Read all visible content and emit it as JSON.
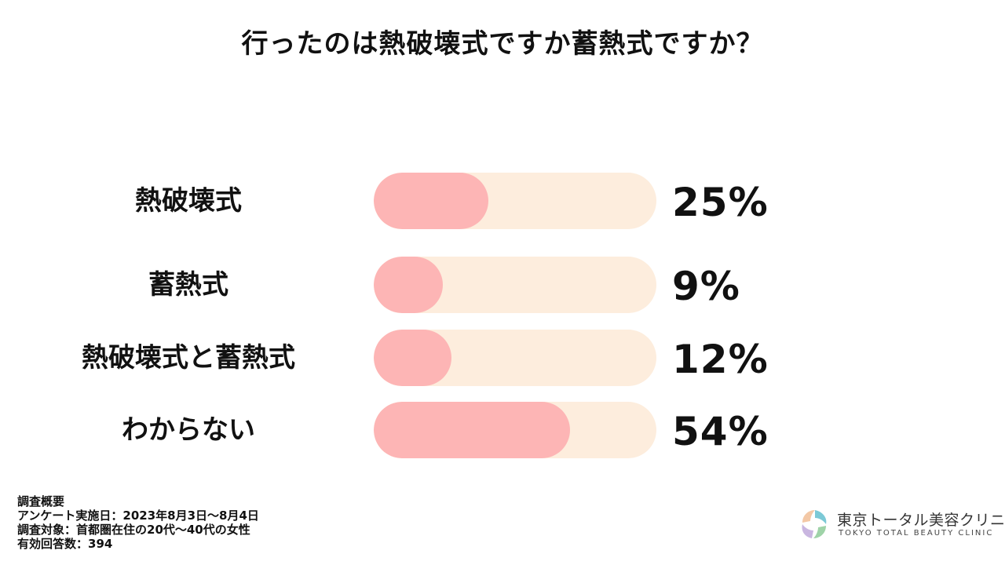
{
  "chart_data": {
    "type": "bar",
    "title": "行ったのは熱破壊式ですか蓄熱式ですか？",
    "categories": [
      "熱破壊式",
      "蓄熱式",
      "熱破壊式と蓄熱式",
      "わからない"
    ],
    "values": [
      25,
      9,
      12,
      54
    ],
    "value_labels": [
      "25%",
      "9%",
      "12%",
      "54%"
    ],
    "xlim": [
      0,
      100
    ],
    "orientation": "horizontal",
    "grid": false,
    "legend": "none"
  },
  "colors": {
    "bar_fill": "#fdb5b5",
    "track": "#fdeddd",
    "text": "#111111"
  },
  "survey": {
    "heading": "調査概要",
    "date": "アンケート実施日：2023年8月3日～8月4日",
    "target": "調査対象：首都圏在住の20代～40代の女性",
    "responses": "有効回答数：394"
  },
  "logo": {
    "name_ja": "東京トータル美容クリニック",
    "name_en": "TOKYO TOTAL BEAUTY CLINIC",
    "icon": "clinic-logo-icon"
  }
}
